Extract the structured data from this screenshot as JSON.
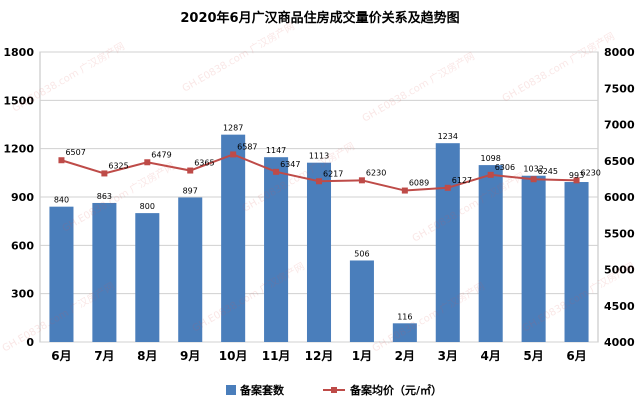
{
  "chart_data": {
    "type": "bar+line",
    "title": "2020年6月广汉商品住房成交量价关系及趋势图",
    "categories": [
      "6月",
      "7月",
      "8月",
      "9月",
      "10月",
      "11月",
      "12月",
      "1月",
      "2月",
      "3月",
      "4月",
      "5月",
      "6月"
    ],
    "series": [
      {
        "name": "备案套数",
        "type": "bar",
        "axis": "left",
        "color": "#4a7ebb",
        "values": [
          840,
          863,
          800,
          897,
          1287,
          1147,
          1113,
          506,
          116,
          1234,
          1098,
          1032,
          993
        ]
      },
      {
        "name": "备案均价（元/㎡）",
        "type": "line",
        "axis": "right",
        "color": "#be4b48",
        "values": [
          6507,
          6325,
          6479,
          6365,
          6587,
          6347,
          6217,
          6230,
          6089,
          6127,
          6306,
          6245,
          6230
        ]
      }
    ],
    "y_left": {
      "min": 0,
      "max": 1800,
      "ticks": [
        0,
        300,
        600,
        900,
        1200,
        1500,
        1800
      ]
    },
    "y_right": {
      "min": 4000,
      "max": 8000,
      "ticks": [
        4000,
        4500,
        5000,
        5500,
        6000,
        6500,
        7000,
        7500,
        8000
      ]
    },
    "grid": true,
    "legend_position": "bottom"
  },
  "watermark_text": "GH.E0838.com 广汉房产网"
}
